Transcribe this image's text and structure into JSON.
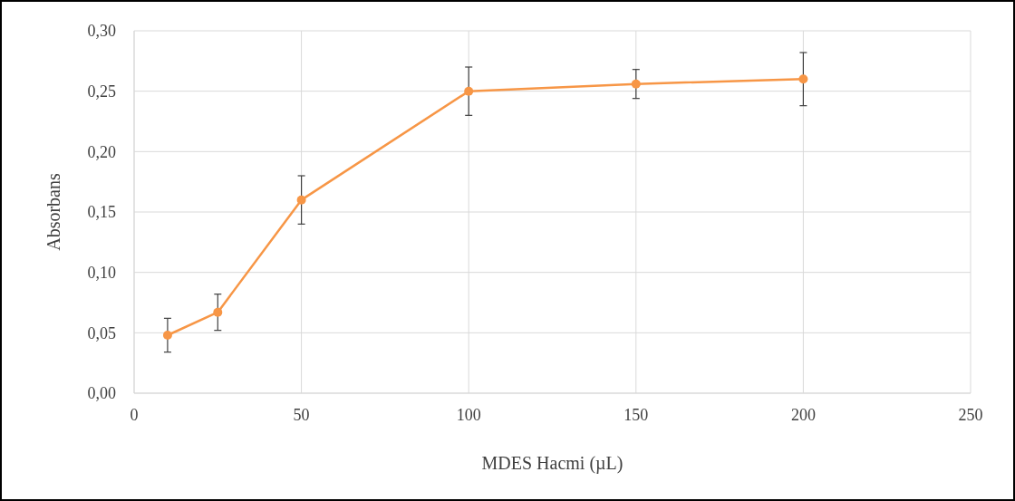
{
  "chart_data": {
    "type": "line",
    "xlabel": "MDES Hacmi (µL)",
    "ylabel": "Absorbans",
    "x": [
      10,
      25,
      50,
      100,
      150,
      200
    ],
    "series": [
      {
        "color": "#f79646",
        "values": [
          0.048,
          0.067,
          0.16,
          0.25,
          0.256,
          0.26
        ],
        "errors": [
          0.014,
          0.015,
          0.02,
          0.02,
          0.012,
          0.022
        ]
      }
    ],
    "xlim": [
      0,
      250
    ],
    "xticks": [
      0,
      50,
      100,
      150,
      200,
      250
    ],
    "ylim": [
      0,
      0.3
    ],
    "yticks": [
      {
        "value": 0,
        "label": "0,00"
      },
      {
        "value": 0.05,
        "label": "0,05"
      },
      {
        "value": 0.1,
        "label": "0,10"
      },
      {
        "value": 0.15,
        "label": "0,15"
      },
      {
        "value": 0.2,
        "label": "0,20"
      },
      {
        "value": 0.25,
        "label": "0,25"
      },
      {
        "value": 0.3,
        "label": "0,30"
      }
    ],
    "grid": true,
    "marker": "circle",
    "line_style": "solid"
  }
}
